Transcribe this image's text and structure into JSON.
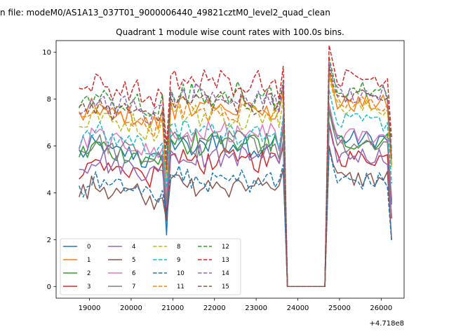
{
  "suptitle": "n file: modeM0/AS1A13_037T01_9000006440_49821cztM0_level2_quad_clean",
  "chart_data": {
    "type": "line",
    "title": "Quadrant 1 module wise count rates with 100.0s bins.",
    "xlabel": "",
    "ylabel": "",
    "x_offset_label": "+4.718e8",
    "xlim": [
      18200,
      26550
    ],
    "ylim": [
      -0.5,
      10.5
    ],
    "xticks": [
      19000,
      20000,
      21000,
      22000,
      23000,
      24000,
      25000,
      26000
    ],
    "yticks": [
      0,
      2,
      4,
      6,
      8,
      10
    ],
    "legend_position": "lower-left",
    "gaps": [
      {
        "x": [
          23650,
          23750,
          24650,
          24750
        ],
        "y": [
          6,
          0,
          0,
          6
        ]
      }
    ],
    "series": [
      {
        "name": "0",
        "color": "#1f77b4",
        "style": "solid",
        "base": 5.7,
        "dip": 2.2,
        "after": 6.3
      },
      {
        "name": "1",
        "color": "#ff7f0e",
        "style": "solid",
        "base": 7.3,
        "dip": 3.5,
        "after": 7.8
      },
      {
        "name": "2",
        "color": "#2ca02c",
        "style": "solid",
        "base": 5.7,
        "dip": 3.3,
        "after": 6.2
      },
      {
        "name": "3",
        "color": "#d62728",
        "style": "solid",
        "base": 5.0,
        "dip": 3.0,
        "after": 5.5
      },
      {
        "name": "4",
        "color": "#9467bd",
        "style": "solid",
        "base": 5.2,
        "dip": 3.4,
        "after": 5.6
      },
      {
        "name": "5",
        "color": "#8c564b",
        "style": "solid",
        "base": 4.0,
        "dip": 2.8,
        "after": 4.6
      },
      {
        "name": "6",
        "color": "#e377c2",
        "style": "solid",
        "base": 6.1,
        "dip": 4.0,
        "after": 6.4
      },
      {
        "name": "7",
        "color": "#7f7f7f",
        "style": "solid",
        "base": 5.8,
        "dip": 3.5,
        "after": 6.1
      },
      {
        "name": "8",
        "color": "#bcbd22",
        "style": "dashed",
        "base": 7.0,
        "dip": 4.5,
        "after": 7.6
      },
      {
        "name": "9",
        "color": "#17becf",
        "style": "dashed",
        "base": 6.3,
        "dip": 4.2,
        "after": 7.0
      },
      {
        "name": "10",
        "color": "#1f77b4",
        "style": "dashed",
        "base": 4.2,
        "dip": 3.0,
        "after": 4.5
      },
      {
        "name": "11",
        "color": "#ff7f0e",
        "style": "dashed",
        "base": 7.2,
        "dip": 4.8,
        "after": 7.8
      },
      {
        "name": "12",
        "color": "#2ca02c",
        "style": "dashed",
        "base": 7.8,
        "dip": 5.5,
        "after": 8.4
      },
      {
        "name": "13",
        "color": "#d62728",
        "style": "dashed",
        "base": 8.4,
        "dip": 6.0,
        "after": 8.9
      },
      {
        "name": "14",
        "color": "#9467bd",
        "style": "dashed",
        "base": 7.7,
        "dip": 5.2,
        "after": 8.2
      },
      {
        "name": "15",
        "color": "#8c564b",
        "style": "dashed",
        "base": 7.5,
        "dip": 5.0,
        "after": 8.0
      }
    ]
  }
}
